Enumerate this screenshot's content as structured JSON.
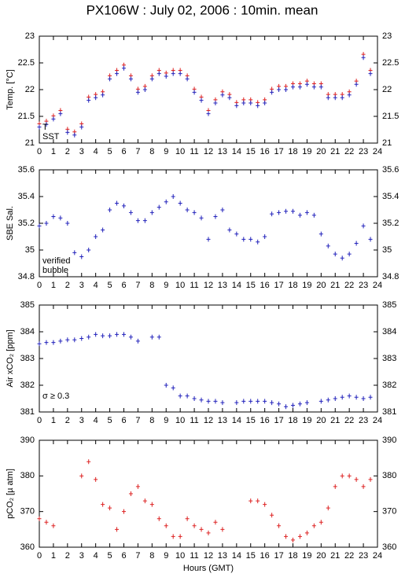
{
  "title": "PX106W : July 02, 2006 : 10min. mean",
  "chart_data": [
    {
      "type": "scatter",
      "ylabel": "Temp. [°C]",
      "x": [
        0,
        0.5,
        1,
        1.5,
        2,
        2.5,
        3,
        3.5,
        4,
        4.5,
        5,
        5.5,
        6,
        6.5,
        7,
        7.5,
        8,
        8.5,
        9,
        9.5,
        10,
        10.5,
        11,
        11.5,
        12,
        12.5,
        13,
        13.5,
        14,
        14.5,
        15,
        15.5,
        16,
        16.5,
        17,
        17.5,
        18,
        18.5,
        19,
        19.5,
        20,
        20.5,
        21,
        21.5,
        22,
        22.5,
        23,
        23.5
      ],
      "xlim": [
        0,
        24
      ],
      "xticks": [
        0,
        1,
        2,
        3,
        4,
        5,
        6,
        7,
        8,
        9,
        10,
        11,
        12,
        13,
        14,
        15,
        16,
        17,
        18,
        19,
        20,
        21,
        22,
        23,
        24
      ],
      "ylim": [
        21,
        23
      ],
      "yticks": [
        21,
        21.5,
        22,
        22.5,
        23
      ],
      "series": [
        {
          "name": "T",
          "color": "#dd2222",
          "values": [
            21.36,
            21.41,
            21.51,
            21.61,
            21.26,
            21.21,
            21.36,
            21.86,
            21.91,
            21.96,
            22.26,
            22.36,
            22.46,
            22.26,
            22.01,
            22.06,
            22.26,
            22.36,
            22.31,
            22.36,
            22.36,
            22.26,
            22.01,
            21.86,
            21.61,
            21.81,
            21.96,
            21.91,
            21.76,
            21.81,
            21.81,
            21.76,
            21.81,
            22.01,
            22.06,
            22.06,
            22.11,
            22.11,
            22.16,
            22.11,
            22.11,
            21.91,
            21.91,
            21.91,
            21.96,
            22.16,
            22.66,
            22.36
          ]
        },
        {
          "name": "SST",
          "color": "#2222bb",
          "values": [
            21.3,
            21.35,
            21.45,
            21.55,
            21.2,
            21.15,
            21.3,
            21.8,
            21.85,
            21.9,
            22.2,
            22.3,
            22.4,
            22.2,
            21.95,
            22.0,
            22.2,
            22.3,
            22.25,
            22.3,
            22.3,
            22.2,
            21.95,
            21.8,
            21.55,
            21.75,
            21.9,
            21.85,
            21.7,
            21.75,
            21.75,
            21.7,
            21.75,
            21.95,
            22.0,
            22.0,
            22.05,
            22.05,
            22.1,
            22.05,
            22.05,
            21.85,
            21.85,
            21.85,
            21.9,
            22.1,
            22.6,
            22.3
          ]
        }
      ]
    },
    {
      "type": "scatter",
      "ylabel": "SBE Sal.",
      "x": [
        0,
        0.5,
        1,
        1.5,
        2,
        2.5,
        3,
        3.5,
        4,
        4.5,
        5,
        5.5,
        6,
        6.5,
        7,
        7.5,
        8,
        8.5,
        9,
        9.5,
        10,
        10.5,
        11,
        11.5,
        12,
        12.5,
        13,
        13.5,
        14,
        14.5,
        15,
        15.5,
        16,
        16.5,
        17,
        17.5,
        18,
        18.5,
        19,
        19.5,
        20,
        20.5,
        21,
        21.5,
        22,
        22.5,
        23,
        23.5
      ],
      "xlim": [
        0,
        24
      ],
      "xticks": [
        0,
        1,
        2,
        3,
        4,
        5,
        6,
        7,
        8,
        9,
        10,
        11,
        12,
        13,
        14,
        15,
        16,
        17,
        18,
        19,
        20,
        21,
        22,
        23,
        24
      ],
      "ylim": [
        34.8,
        35.6
      ],
      "yticks": [
        34.8,
        35,
        35.2,
        35.4,
        35.6
      ],
      "series": [
        {
          "name": "verified",
          "color": "#2222bb",
          "values": [
            35.18,
            35.2,
            35.25,
            35.24,
            35.2,
            34.98,
            34.95,
            35.0,
            35.1,
            35.15,
            35.3,
            35.35,
            35.33,
            35.28,
            35.22,
            35.22,
            35.28,
            35.32,
            35.36,
            35.4,
            35.35,
            35.3,
            35.28,
            35.24,
            35.08,
            35.25,
            35.3,
            35.15,
            35.12,
            35.08,
            35.08,
            35.06,
            35.1,
            35.27,
            35.28,
            35.29,
            35.29,
            35.26,
            35.28,
            35.26,
            35.12,
            35.03,
            34.97,
            34.94,
            34.97,
            35.05,
            35.18,
            35.08
          ]
        },
        {
          "name": "bubble",
          "color": "#cc00cc",
          "values": [
            null,
            null,
            null,
            null,
            null,
            null,
            null,
            null,
            null,
            null,
            null,
            null,
            null,
            null,
            null,
            null,
            null,
            null,
            null,
            null,
            null,
            null,
            null,
            null,
            null,
            null,
            null,
            null,
            null,
            null,
            null,
            null,
            null,
            null,
            null,
            null,
            null,
            null,
            null,
            null,
            null,
            null,
            null,
            null,
            null,
            null,
            null,
            null
          ]
        }
      ]
    },
    {
      "type": "scatter",
      "ylabel": "Air xCO₂ [ppm]",
      "annotation": "σ ≥ 0.3",
      "annotation_color": "#cc00cc",
      "x": [
        0,
        0.5,
        1,
        1.5,
        2,
        2.5,
        3,
        3.5,
        4,
        4.5,
        5,
        5.5,
        6,
        6.5,
        7,
        7.5,
        8,
        8.5,
        9,
        9.5,
        10,
        10.5,
        11,
        11.5,
        12,
        12.5,
        13,
        13.5,
        14,
        14.5,
        15,
        15.5,
        16,
        16.5,
        17,
        17.5,
        18,
        18.5,
        19,
        19.5,
        20,
        20.5,
        21,
        21.5,
        22,
        22.5,
        23,
        23.5
      ],
      "xlim": [
        0,
        24
      ],
      "xticks": [
        0,
        1,
        2,
        3,
        4,
        5,
        6,
        7,
        8,
        9,
        10,
        11,
        12,
        13,
        14,
        15,
        16,
        17,
        18,
        19,
        20,
        21,
        22,
        23,
        24
      ],
      "ylim": [
        381,
        385
      ],
      "yticks": [
        381,
        382,
        383,
        384,
        385
      ],
      "color": "#2222bb",
      "values": [
        383.55,
        383.6,
        383.6,
        383.65,
        383.7,
        383.7,
        383.75,
        383.8,
        383.9,
        383.85,
        383.85,
        383.9,
        383.9,
        383.8,
        383.65,
        null,
        383.8,
        383.8,
        382.0,
        381.9,
        381.6,
        381.6,
        381.5,
        381.45,
        381.4,
        381.4,
        381.35,
        null,
        381.35,
        381.4,
        381.4,
        381.4,
        381.4,
        381.35,
        381.3,
        381.2,
        381.25,
        381.3,
        381.35,
        null,
        381.4,
        381.45,
        381.5,
        381.55,
        381.6,
        381.55,
        381.5,
        381.55
      ]
    },
    {
      "type": "scatter",
      "ylabel": "pCO₂ [µ atm]",
      "xlabel": "Hours (GMT)",
      "x": [
        0,
        0.5,
        1,
        1.5,
        2,
        2.5,
        3,
        3.5,
        4,
        4.5,
        5,
        5.5,
        6,
        6.5,
        7,
        7.5,
        8,
        8.5,
        9,
        9.5,
        10,
        10.5,
        11,
        11.5,
        12,
        12.5,
        13,
        13.5,
        14,
        14.5,
        15,
        15.5,
        16,
        16.5,
        17,
        17.5,
        18,
        18.5,
        19,
        19.5,
        20,
        20.5,
        21,
        21.5,
        22,
        22.5,
        23,
        23.5
      ],
      "xlim": [
        0,
        24
      ],
      "xticks": [
        0,
        1,
        2,
        3,
        4,
        5,
        6,
        7,
        8,
        9,
        10,
        11,
        12,
        13,
        14,
        15,
        16,
        17,
        18,
        19,
        20,
        21,
        22,
        23,
        24
      ],
      "ylim": [
        360,
        390
      ],
      "yticks": [
        360,
        370,
        380,
        390
      ],
      "color": "#dd2222",
      "values": [
        368,
        367,
        366,
        null,
        null,
        null,
        380,
        384,
        379,
        372,
        371,
        365,
        370,
        375,
        377,
        373,
        372,
        368,
        366,
        363,
        363,
        368,
        366,
        365,
        364,
        367,
        365,
        null,
        null,
        null,
        373,
        373,
        372,
        369,
        366,
        363,
        362,
        363,
        364,
        366,
        367,
        371,
        377,
        380,
        380,
        379,
        377,
        379
      ]
    }
  ]
}
